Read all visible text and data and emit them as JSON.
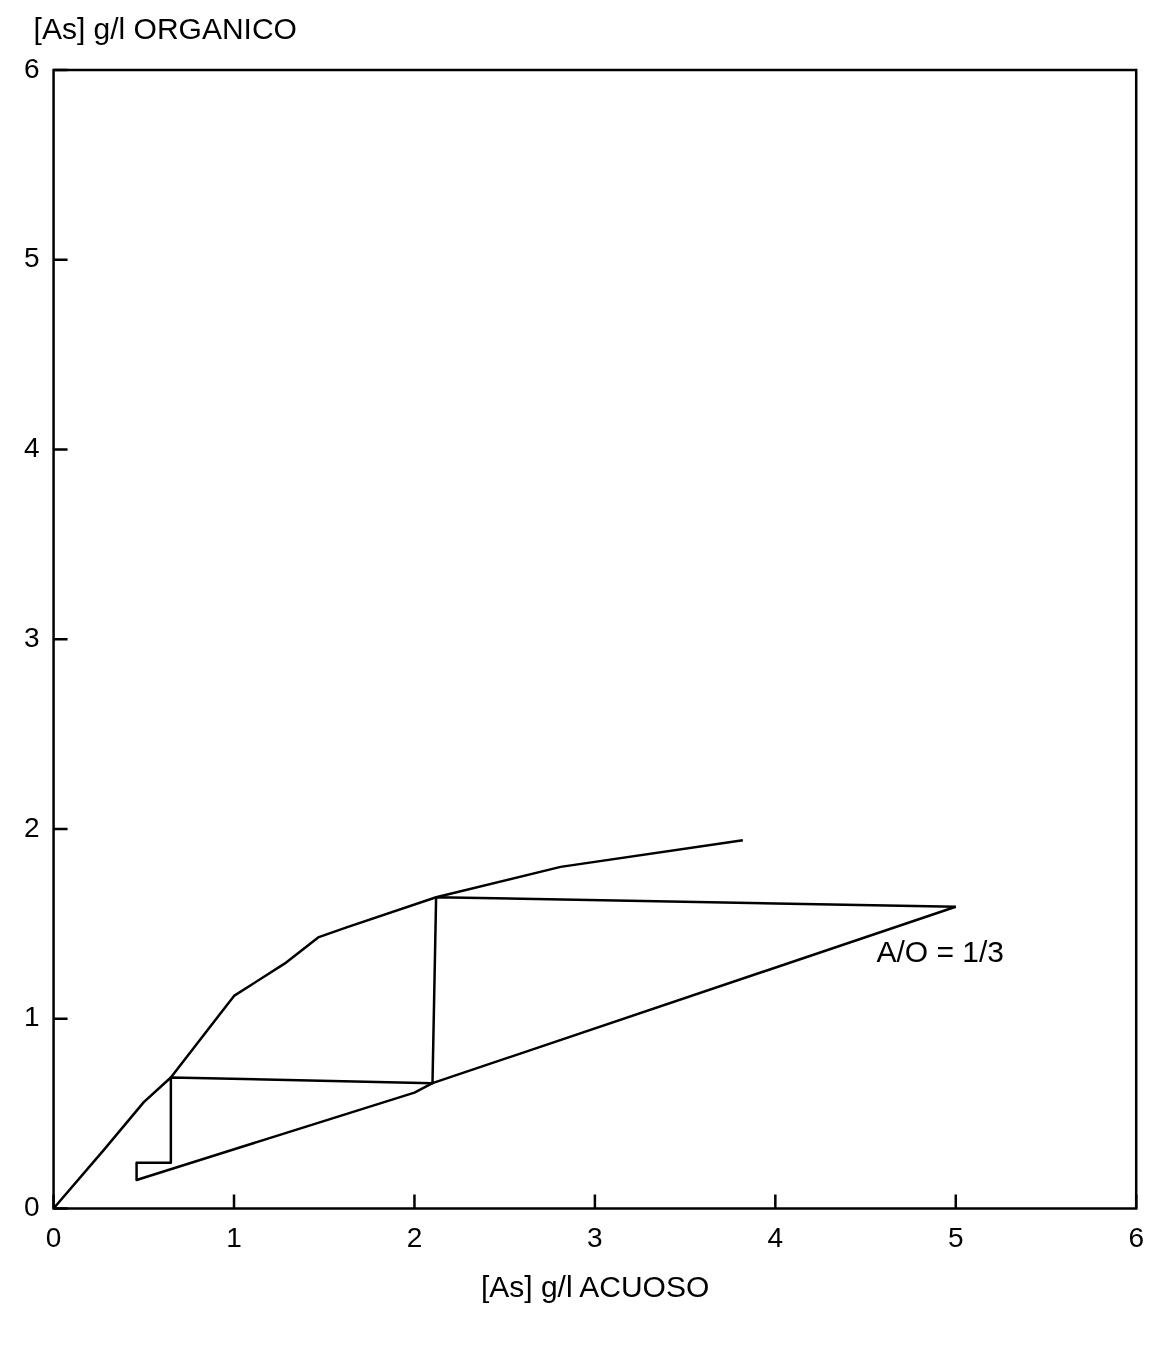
{
  "chart_data": {
    "type": "line",
    "xlabel": "[As] g/l ACUOSO",
    "ylabel": "[As] g/l ORGANICO",
    "xlim": [
      0,
      6
    ],
    "xticks": [
      0,
      1,
      2,
      3,
      4,
      5,
      6
    ],
    "ylim": [
      0,
      6
    ],
    "yticks": [
      0,
      1,
      2,
      3,
      4,
      5,
      6
    ],
    "grid": false,
    "legend": false,
    "marker": "none",
    "line_style": "solid",
    "annotations": [
      "A/O = 1/3"
    ],
    "series": [
      {
        "color": "#000000",
        "x": [
          0,
          0.28,
          0.5,
          0.65,
          1.0,
          1.28,
          1.47,
          1.62,
          2.12,
          2.81,
          3.82
        ],
        "values": [
          0,
          0.31,
          0.56,
          0.69,
          1.12,
          1.29,
          1.43,
          1.48,
          1.64,
          1.8,
          1.94
        ]
      },
      {
        "color": "#000000",
        "x": [
          0.46,
          2.0,
          2.1,
          5.0
        ],
        "values": [
          0.15,
          0.61,
          0.66,
          1.59
        ]
      },
      {
        "color": "#000000",
        "x": [
          5.0,
          2.12,
          2.1,
          0.65,
          0.65,
          0.46,
          0.46
        ],
        "values": [
          1.59,
          1.64,
          0.66,
          0.69,
          0.24,
          0.24,
          0.15
        ]
      }
    ]
  }
}
